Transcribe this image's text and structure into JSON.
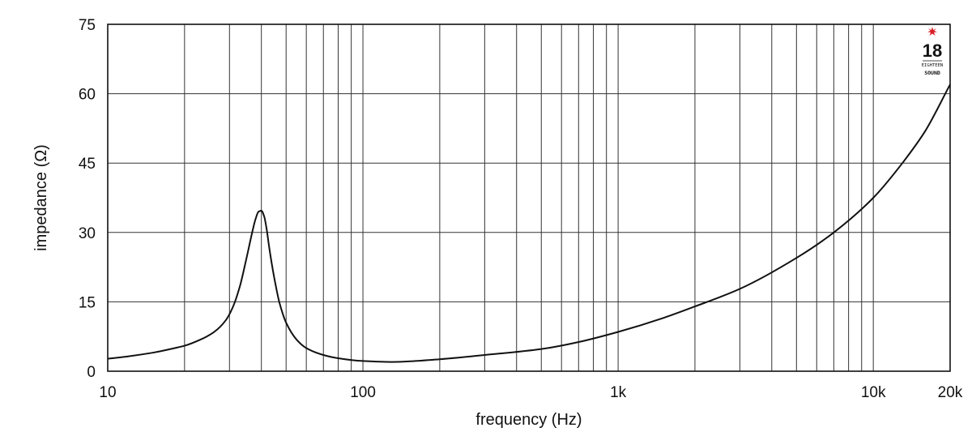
{
  "chart_data": {
    "type": "line",
    "xlabel": "frequency (Hz)",
    "ylabel": "impedance (Ω)",
    "x_scale": "log",
    "xlim": [
      10,
      20000
    ],
    "ylim": [
      0,
      75
    ],
    "x_ticks": [
      {
        "value": 10,
        "label": "10"
      },
      {
        "value": 100,
        "label": "100"
      },
      {
        "value": 1000,
        "label": "1k"
      },
      {
        "value": 10000,
        "label": "10k"
      },
      {
        "value": 20000,
        "label": "20k"
      }
    ],
    "y_ticks": [
      {
        "value": 0,
        "label": "0"
      },
      {
        "value": 15,
        "label": "15"
      },
      {
        "value": 30,
        "label": "30"
      },
      {
        "value": 45,
        "label": "45"
      },
      {
        "value": 60,
        "label": "60"
      },
      {
        "value": 75,
        "label": "75"
      }
    ],
    "grid": true,
    "series": [
      {
        "color": "#111111",
        "x": [
          10,
          12,
          15,
          18,
          20,
          23,
          26,
          29,
          31,
          33,
          35,
          37,
          38,
          39,
          40,
          41,
          42,
          43,
          45,
          47,
          50,
          55,
          60,
          70,
          80,
          100,
          130,
          200,
          300,
          500,
          700,
          1000,
          1500,
          2000,
          3000,
          5000,
          7000,
          10000,
          13000,
          16000,
          20000
        ],
        "y": [
          2.7,
          3.2,
          4.0,
          4.9,
          5.5,
          6.8,
          8.4,
          11.0,
          14.0,
          18.5,
          24.5,
          30.5,
          33.0,
          34.5,
          34.7,
          33.5,
          30.5,
          26.5,
          20.0,
          15.0,
          10.5,
          6.8,
          5.0,
          3.5,
          2.8,
          2.2,
          2.0,
          2.6,
          3.5,
          4.8,
          6.3,
          8.5,
          11.5,
          14.0,
          17.8,
          24.5,
          30.0,
          37.5,
          45.0,
          52.0,
          62.0
        ]
      }
    ]
  },
  "logo": {
    "number": "18",
    "tagline": "EIGHTEEN",
    "word": "SOUND",
    "star_color": "#d81f26"
  }
}
